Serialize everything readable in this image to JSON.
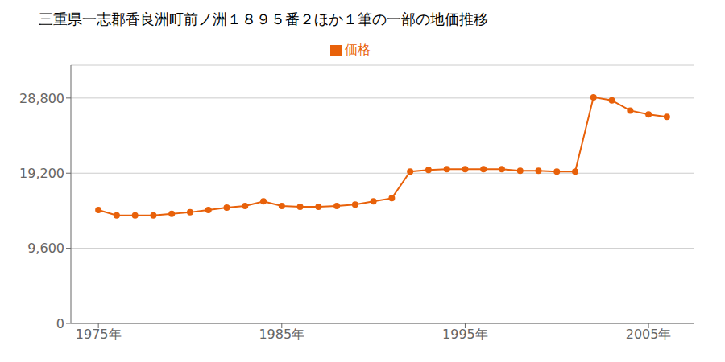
{
  "chart_data": {
    "type": "line",
    "title": "三重県一志郡香良洲町前ノ洲１８９５番２ほか１筆の一部の地価推移",
    "x": [
      1975,
      1976,
      1977,
      1978,
      1979,
      1980,
      1981,
      1982,
      1983,
      1984,
      1985,
      1986,
      1987,
      1988,
      1989,
      1990,
      1991,
      1992,
      1993,
      1994,
      1995,
      1996,
      1997,
      1998,
      1999,
      2000,
      2001,
      2002,
      2003,
      2004,
      2005,
      2006
    ],
    "series": [
      {
        "name": "価格",
        "color": "#e8610a",
        "values": [
          14500,
          13800,
          13800,
          13800,
          14000,
          14200,
          14500,
          14800,
          15000,
          15600,
          15000,
          14900,
          14900,
          15000,
          15200,
          15600,
          16000,
          19400,
          19600,
          19700,
          19700,
          19700,
          19700,
          19500,
          19500,
          19400,
          19400,
          28900,
          28500,
          27200,
          26700,
          26400
        ]
      }
    ],
    "xlim": [
      1973.5,
      2007.5
    ],
    "xticks": [
      {
        "value": 1975,
        "label": "1975年"
      },
      {
        "value": 1985,
        "label": "1985年"
      },
      {
        "value": 1995,
        "label": "1995年"
      },
      {
        "value": 2005,
        "label": "2005年"
      }
    ],
    "ylim": [
      0,
      33000
    ],
    "yticks": [
      0,
      {
        "value": 9600,
        "label": "9,600"
      },
      {
        "value": 19200,
        "label": "19,200"
      },
      {
        "value": 28800,
        "label": "28,800"
      }
    ],
    "grid": "y",
    "legend": "top",
    "marker": "circle"
  }
}
